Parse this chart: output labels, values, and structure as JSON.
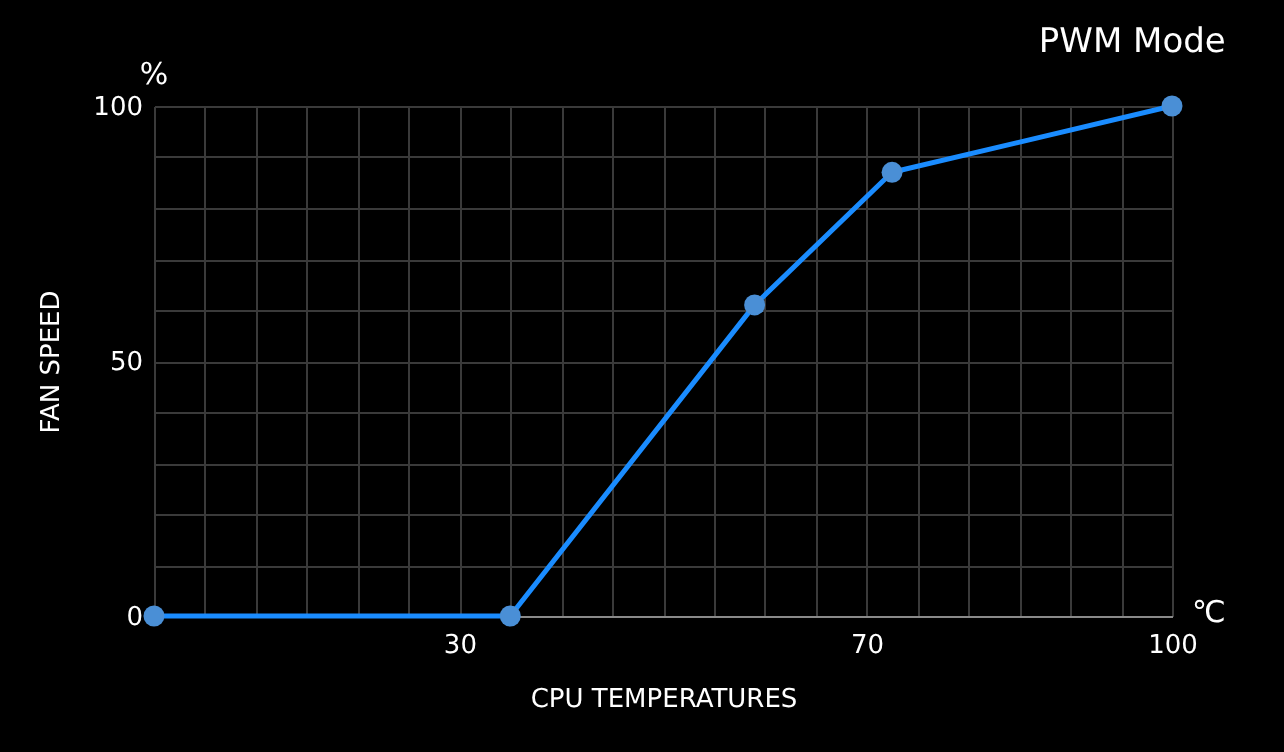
{
  "chart_data": {
    "type": "line",
    "title": "PWM Mode",
    "xlabel": "CPU TEMPERATURES",
    "ylabel": "FAN SPEED",
    "annotations": [
      "%",
      "℃"
    ],
    "x": [
      0,
      35,
      59,
      72.5,
      100
    ],
    "series": [
      {
        "color": "#1a8cff",
        "values": [
          0,
          0,
          61,
          87,
          100
        ]
      }
    ],
    "xlim": [
      0,
      100
    ],
    "ylim": [
      0,
      100
    ],
    "xticks": [
      {
        "value": 0,
        "label": null
      },
      {
        "value": 5,
        "label": null
      },
      {
        "value": 10,
        "label": null
      },
      {
        "value": 15,
        "label": null
      },
      {
        "value": 20,
        "label": null
      },
      {
        "value": 25,
        "label": null
      },
      30,
      {
        "value": 35,
        "label": null
      },
      {
        "value": 40,
        "label": null
      },
      {
        "value": 45,
        "label": null
      },
      {
        "value": 50,
        "label": null
      },
      {
        "value": 55,
        "label": null
      },
      {
        "value": 60,
        "label": null
      },
      {
        "value": 65,
        "label": null
      },
      70,
      {
        "value": 75,
        "label": null
      },
      {
        "value": 80,
        "label": null
      },
      {
        "value": 85,
        "label": null
      },
      {
        "value": 90,
        "label": null
      },
      {
        "value": 95,
        "label": null
      },
      100
    ],
    "yticks": [
      0,
      {
        "value": 10,
        "label": null
      },
      {
        "value": 20,
        "label": null
      },
      {
        "value": 30,
        "label": null
      },
      {
        "value": 40,
        "label": null
      },
      50,
      {
        "value": 60,
        "label": null
      },
      {
        "value": 70,
        "label": null
      },
      {
        "value": 80,
        "label": null
      },
      {
        "value": 90,
        "label": null
      },
      100
    ],
    "grid": true,
    "marker": "circle",
    "line_style": "solid"
  }
}
